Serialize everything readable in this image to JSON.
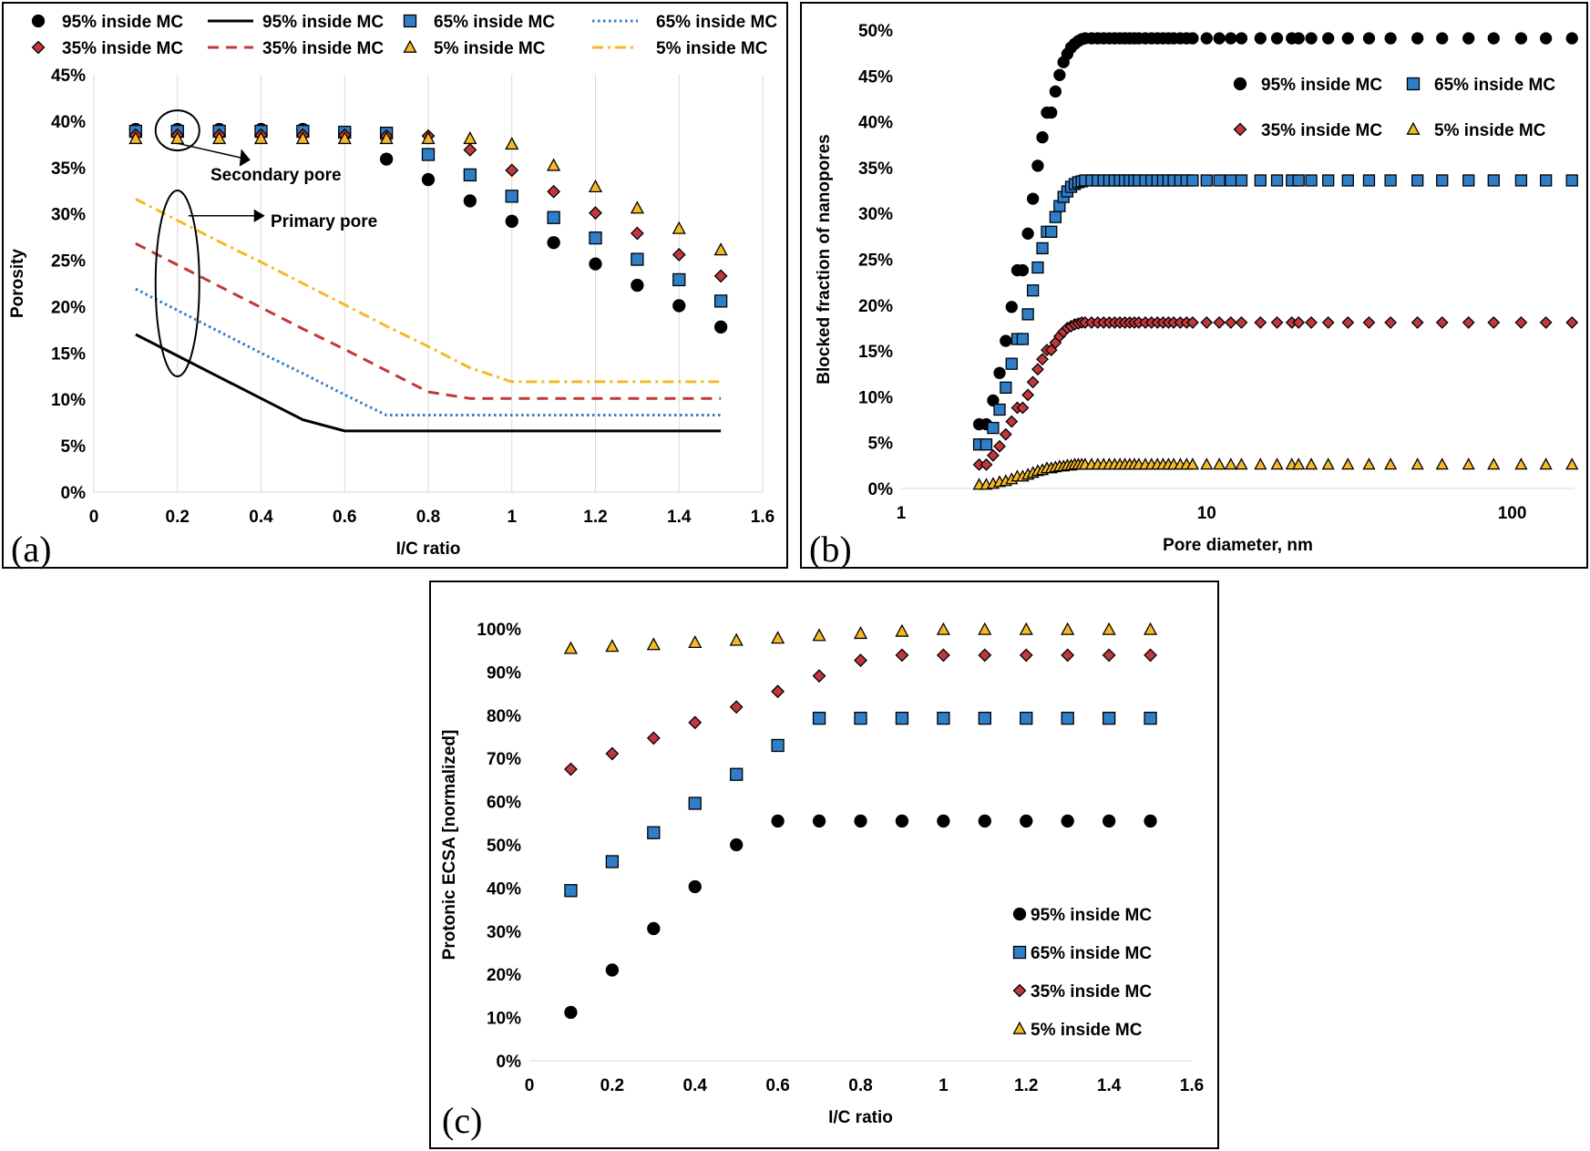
{
  "colors": {
    "black": "#000000",
    "blue": "#2f7ec8",
    "red": "#c0383c",
    "orange": "#f5b926",
    "grid": "#d9d9d9"
  },
  "chart_data": [
    {
      "id": "a",
      "type": "scatter",
      "panel_label": "(a)",
      "xlabel": "I/C ratio",
      "ylabel": "Porosity",
      "xlim": [
        0,
        1.6
      ],
      "xticks": [
        "0",
        "0.2",
        "0.4",
        "0.6",
        "0.8",
        "1",
        "1.2",
        "1.4",
        "1.6"
      ],
      "ylim": [
        0,
        45
      ],
      "yticks": [
        "0%",
        "5%",
        "10%",
        "15%",
        "20%",
        "25%",
        "30%",
        "35%",
        "40%",
        "45%"
      ],
      "grid": "vertical",
      "legend_position": "top",
      "x": [
        0.1,
        0.2,
        0.3,
        0.4,
        0.5,
        0.6,
        0.7,
        0.8,
        0.9,
        1.0,
        1.1,
        1.2,
        1.3,
        1.4,
        1.5
      ],
      "series": [
        {
          "name": "95% inside MC",
          "kind": "markers",
          "marker": "circle",
          "color": "#000000",
          "values": [
            39.1,
            39.1,
            39.1,
            39.1,
            39.1,
            38.8,
            35.9,
            33.7,
            31.4,
            29.2,
            26.9,
            24.6,
            22.3,
            20.1,
            17.8
          ]
        },
        {
          "name": "95% inside MC",
          "kind": "line",
          "dash": "solid",
          "color": "#000000",
          "values": [
            17.0,
            14.7,
            12.4,
            10.1,
            7.8,
            6.6,
            6.6,
            6.6,
            6.6,
            6.6,
            6.6,
            6.6,
            6.6,
            6.6,
            6.6
          ]
        },
        {
          "name": "65% inside MC",
          "kind": "markers",
          "marker": "square",
          "color": "#2f7ec8",
          "values": [
            38.9,
            38.9,
            38.9,
            38.9,
            38.9,
            38.8,
            38.7,
            36.4,
            34.2,
            31.9,
            29.6,
            27.4,
            25.1,
            22.9,
            20.6
          ]
        },
        {
          "name": "65% inside MC",
          "kind": "line",
          "dash": "dotted",
          "color": "#2f7ec8",
          "values": [
            21.9,
            19.6,
            17.3,
            15.0,
            12.8,
            10.5,
            8.3,
            8.3,
            8.3,
            8.3,
            8.3,
            8.3,
            8.3,
            8.3,
            8.3
          ]
        },
        {
          "name": "35% inside MC",
          "kind": "markers",
          "marker": "diamond",
          "color": "#c0383c",
          "values": [
            38.5,
            38.5,
            38.5,
            38.5,
            38.5,
            38.5,
            38.4,
            38.4,
            36.9,
            34.7,
            32.4,
            30.1,
            27.9,
            25.6,
            23.3
          ]
        },
        {
          "name": "35% inside MC",
          "kind": "line",
          "dash": "dashed",
          "color": "#c0383c",
          "values": [
            26.8,
            24.5,
            22.2,
            19.9,
            17.6,
            15.4,
            13.1,
            10.8,
            10.1,
            10.1,
            10.1,
            10.1,
            10.1,
            10.1,
            10.1
          ]
        },
        {
          "name": "5% inside MC",
          "kind": "markers",
          "marker": "triangle",
          "color": "#f5b926",
          "values": [
            38.1,
            38.1,
            38.1,
            38.1,
            38.1,
            38.1,
            38.1,
            38.1,
            38.1,
            37.5,
            35.2,
            32.9,
            30.6,
            28.4,
            26.1
          ]
        },
        {
          "name": "5% inside MC",
          "kind": "line",
          "dash": "dashdot",
          "color": "#f5b926",
          "values": [
            31.6,
            29.3,
            27.0,
            24.8,
            22.5,
            20.2,
            17.9,
            15.7,
            13.4,
            11.9,
            11.9,
            11.9,
            11.9,
            11.9,
            11.9
          ]
        }
      ],
      "annotations": [
        "Secondary pore",
        "Primary pore"
      ]
    },
    {
      "id": "b",
      "type": "scatter",
      "panel_label": "(b)",
      "xlabel": "Pore diameter, nm",
      "ylabel": "Blocked fraction of nanopores",
      "xscale": "log",
      "xlim": [
        1,
        160
      ],
      "xticks": [
        "1",
        "10",
        "100"
      ],
      "ylim": [
        0,
        50
      ],
      "yticks": [
        "0%",
        "5%",
        "10%",
        "15%",
        "20%",
        "25%",
        "30%",
        "35%",
        "40%",
        "45%",
        "50%"
      ],
      "grid": "none",
      "legend_position": "top-right",
      "x": [
        1.8,
        1.9,
        2.0,
        2.1,
        2.2,
        2.3,
        2.4,
        2.5,
        2.6,
        2.7,
        2.8,
        2.9,
        3.0,
        3.1,
        3.2,
        3.3,
        3.4,
        3.5,
        3.6,
        3.7,
        3.8,
        3.9,
        4.0,
        4.2,
        4.4,
        4.6,
        4.8,
        5.0,
        5.2,
        5.4,
        5.6,
        5.8,
        6.0,
        6.3,
        6.6,
        6.9,
        7.2,
        7.5,
        7.8,
        8.2,
        8.6,
        9.0,
        10,
        11,
        12,
        13,
        15,
        17,
        19,
        20,
        22,
        25,
        29,
        34,
        40,
        49,
        59,
        72,
        87,
        107,
        129,
        157
      ],
      "series": [
        {
          "name": "95% inside MC",
          "marker": "circle",
          "color": "#000000",
          "values": [
            7.0,
            7.0,
            9.6,
            12.6,
            16.1,
            19.8,
            23.8,
            23.8,
            27.8,
            31.6,
            35.2,
            38.3,
            41.0,
            41.0,
            43.3,
            45.1,
            46.5,
            47.4,
            48.1,
            48.5,
            48.8,
            49.0,
            49.1,
            49.1,
            49.1,
            49.1,
            49.1,
            49.1,
            49.1,
            49.1,
            49.1,
            49.1,
            49.1,
            49.1,
            49.1,
            49.1,
            49.1,
            49.1,
            49.1,
            49.1,
            49.1,
            49.1,
            49.1,
            49.1,
            49.1,
            49.1,
            49.1,
            49.1,
            49.1,
            49.1,
            49.1,
            49.1,
            49.1,
            49.1,
            49.1,
            49.1,
            49.1,
            49.1,
            49.1,
            49.1,
            49.1,
            49.1
          ]
        },
        {
          "name": "65% inside MC",
          "marker": "square",
          "color": "#2f7ec8",
          "values": [
            4.8,
            4.8,
            6.6,
            8.6,
            11.0,
            13.6,
            16.3,
            16.3,
            19.0,
            21.6,
            24.1,
            26.2,
            28.0,
            28.0,
            29.6,
            30.8,
            31.8,
            32.4,
            32.9,
            33.2,
            33.4,
            33.5,
            33.6,
            33.6,
            33.6,
            33.6,
            33.6,
            33.6,
            33.6,
            33.6,
            33.6,
            33.6,
            33.6,
            33.6,
            33.6,
            33.6,
            33.6,
            33.6,
            33.6,
            33.6,
            33.6,
            33.6,
            33.6,
            33.6,
            33.6,
            33.6,
            33.6,
            33.6,
            33.6,
            33.6,
            33.6,
            33.6,
            33.6,
            33.6,
            33.6,
            33.6,
            33.6,
            33.6,
            33.6,
            33.6,
            33.6,
            33.6
          ]
        },
        {
          "name": "35% inside MC",
          "marker": "diamond",
          "color": "#c0383c",
          "values": [
            2.6,
            2.6,
            3.6,
            4.6,
            5.9,
            7.3,
            8.8,
            8.8,
            10.2,
            11.6,
            13.0,
            14.1,
            15.1,
            15.1,
            15.9,
            16.6,
            17.1,
            17.5,
            17.7,
            17.9,
            18.0,
            18.1,
            18.1,
            18.1,
            18.1,
            18.1,
            18.1,
            18.1,
            18.1,
            18.1,
            18.1,
            18.1,
            18.1,
            18.1,
            18.1,
            18.1,
            18.1,
            18.1,
            18.1,
            18.1,
            18.1,
            18.1,
            18.1,
            18.1,
            18.1,
            18.1,
            18.1,
            18.1,
            18.1,
            18.1,
            18.1,
            18.1,
            18.1,
            18.1,
            18.1,
            18.1,
            18.1,
            18.1,
            18.1,
            18.1,
            18.1,
            18.1
          ]
        },
        {
          "name": "5% inside MC",
          "marker": "triangle",
          "color": "#f5b926",
          "values": [
            0.4,
            0.4,
            0.5,
            0.7,
            0.8,
            1.0,
            1.3,
            1.3,
            1.5,
            1.7,
            1.9,
            2.0,
            2.2,
            2.2,
            2.3,
            2.4,
            2.4,
            2.5,
            2.5,
            2.6,
            2.6,
            2.6,
            2.6,
            2.6,
            2.6,
            2.6,
            2.6,
            2.6,
            2.6,
            2.6,
            2.6,
            2.6,
            2.6,
            2.6,
            2.6,
            2.6,
            2.6,
            2.6,
            2.6,
            2.6,
            2.6,
            2.6,
            2.6,
            2.6,
            2.6,
            2.6,
            2.6,
            2.6,
            2.6,
            2.6,
            2.6,
            2.6,
            2.6,
            2.6,
            2.6,
            2.6,
            2.6,
            2.6,
            2.6,
            2.6,
            2.6,
            2.6
          ]
        }
      ]
    },
    {
      "id": "c",
      "type": "scatter",
      "panel_label": "(c)",
      "xlabel": "I/C ratio",
      "ylabel": "Protonic ECSA [normalized]",
      "xlim": [
        0,
        1.6
      ],
      "xticks": [
        "0",
        "0.2",
        "0.4",
        "0.6",
        "0.8",
        "1",
        "1.2",
        "1.4",
        "1.6"
      ],
      "ylim": [
        0,
        100
      ],
      "yticks": [
        "0%",
        "10%",
        "20%",
        "30%",
        "40%",
        "50%",
        "60%",
        "70%",
        "80%",
        "90%",
        "100%"
      ],
      "grid": "none",
      "legend_position": "bottom-right",
      "x": [
        0.1,
        0.2,
        0.3,
        0.4,
        0.5,
        0.6,
        0.7,
        0.8,
        0.9,
        1.0,
        1.1,
        1.2,
        1.3,
        1.4,
        1.5
      ],
      "series": [
        {
          "name": "95% inside MC",
          "marker": "circle",
          "color": "#000000",
          "values": [
            11.2,
            21.0,
            30.6,
            40.3,
            50.0,
            55.5,
            55.5,
            55.5,
            55.5,
            55.5,
            55.5,
            55.5,
            55.5,
            55.5,
            55.5
          ]
        },
        {
          "name": "65% inside MC",
          "marker": "square",
          "color": "#2f7ec8",
          "values": [
            39.4,
            46.1,
            52.8,
            59.6,
            66.3,
            73.0,
            79.3,
            79.3,
            79.3,
            79.3,
            79.3,
            79.3,
            79.3,
            79.3,
            79.3
          ]
        },
        {
          "name": "35% inside MC",
          "marker": "diamond",
          "color": "#c0383c",
          "values": [
            67.5,
            71.1,
            74.7,
            78.3,
            81.9,
            85.5,
            89.1,
            92.7,
            93.9,
            93.9,
            93.9,
            93.9,
            93.9,
            93.9,
            93.9
          ]
        },
        {
          "name": "5% inside MC",
          "marker": "triangle",
          "color": "#f5b926",
          "values": [
            95.4,
            95.9,
            96.3,
            96.8,
            97.3,
            97.8,
            98.4,
            98.9,
            99.4,
            99.8,
            99.8,
            99.8,
            99.8,
            99.8,
            99.8
          ]
        }
      ]
    }
  ]
}
